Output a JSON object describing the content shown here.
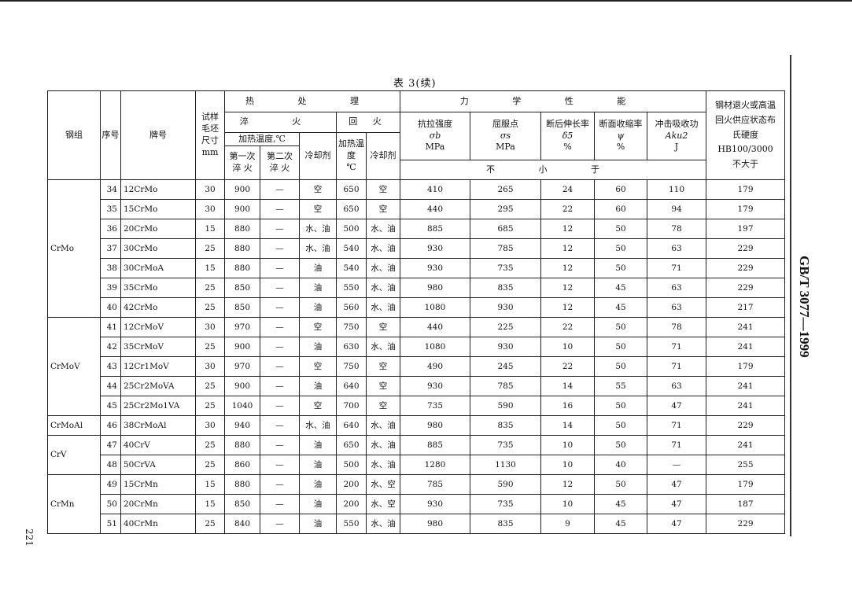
{
  "title": "表 3(续)",
  "side_label": "GB/T 3077—1999",
  "page_number": "221",
  "header": {
    "group": "钢组",
    "index": "序号",
    "grade": "牌号",
    "blank_size": "试样毛坯尺寸",
    "blank_size_unit": "mm",
    "heat_treatment": "热 处 理",
    "quench": "淬 火",
    "temper": "回 火",
    "heat_temp": "加热温度,℃",
    "first_quench": "第一次淬 火",
    "second_quench": "第二次淬 火",
    "coolant": "冷却剂",
    "temper_temp": "加热温度",
    "temper_temp_unit": "℃",
    "temper_coolant": "冷却剂",
    "mechanical": "力 学 性 能",
    "tensile": {
      "name": "抗拉强度",
      "symbol": "σb",
      "unit": "MPa"
    },
    "yield": {
      "name": "屈服点",
      "symbol": "σs",
      "unit": "MPa"
    },
    "elongation": {
      "name": "断后伸长率",
      "symbol": "δ5",
      "unit": "%"
    },
    "reduction": {
      "name": "断面收缩率",
      "symbol": "ψ",
      "unit": "%"
    },
    "impact": {
      "name": "冲击吸收功",
      "symbol": "Aku2",
      "unit": "J"
    },
    "not_less": "不 小 于",
    "hardness": "钢材退火或高温回火供应状态布氏硬度",
    "hardness_unit": "HB100/3000",
    "hardness_note": "不大于"
  },
  "groups": [
    {
      "name": "CrMo",
      "rows": [
        [
          "34",
          "12CrMo",
          "30",
          "900",
          "—",
          "空",
          "650",
          "空",
          "410",
          "265",
          "24",
          "60",
          "110",
          "179"
        ],
        [
          "35",
          "15CrMo",
          "30",
          "900",
          "—",
          "空",
          "650",
          "空",
          "440",
          "295",
          "22",
          "60",
          "94",
          "179"
        ],
        [
          "36",
          "20CrMo",
          "15",
          "880",
          "—",
          "水、油",
          "500",
          "水、油",
          "885",
          "685",
          "12",
          "50",
          "78",
          "197"
        ],
        [
          "37",
          "30CrMo",
          "25",
          "880",
          "—",
          "水、油",
          "540",
          "水、油",
          "930",
          "785",
          "12",
          "50",
          "63",
          "229"
        ],
        [
          "38",
          "30CrMoA",
          "15",
          "880",
          "—",
          "油",
          "540",
          "水、油",
          "930",
          "735",
          "12",
          "50",
          "71",
          "229"
        ],
        [
          "39",
          "35CrMo",
          "25",
          "850",
          "—",
          "油",
          "550",
          "水、油",
          "980",
          "835",
          "12",
          "45",
          "63",
          "229"
        ],
        [
          "40",
          "42CrMo",
          "25",
          "850",
          "—",
          "油",
          "560",
          "水、油",
          "1080",
          "930",
          "12",
          "45",
          "63",
          "217"
        ]
      ]
    },
    {
      "name": "CrMoV",
      "rows": [
        [
          "41",
          "12CrMoV",
          "30",
          "970",
          "—",
          "空",
          "750",
          "空",
          "440",
          "225",
          "22",
          "50",
          "78",
          "241"
        ],
        [
          "42",
          "35CrMoV",
          "25",
          "900",
          "—",
          "油",
          "630",
          "水、油",
          "1080",
          "930",
          "10",
          "50",
          "71",
          "241"
        ],
        [
          "43",
          "12Cr1MoV",
          "30",
          "970",
          "—",
          "空",
          "750",
          "空",
          "490",
          "245",
          "22",
          "50",
          "71",
          "179"
        ],
        [
          "44",
          "25Cr2MoVA",
          "25",
          "900",
          "—",
          "油",
          "640",
          "空",
          "930",
          "785",
          "14",
          "55",
          "63",
          "241"
        ],
        [
          "45",
          "25Cr2Mo1VA",
          "25",
          "1040",
          "—",
          "空",
          "700",
          "空",
          "735",
          "590",
          "16",
          "50",
          "47",
          "241"
        ]
      ]
    },
    {
      "name": "CrMoAl",
      "rows": [
        [
          "46",
          "38CrMoAl",
          "30",
          "940",
          "—",
          "水、油",
          "640",
          "水、油",
          "980",
          "835",
          "14",
          "50",
          "71",
          "229"
        ]
      ]
    },
    {
      "name": "CrV",
      "rows": [
        [
          "47",
          "40CrV",
          "25",
          "880",
          "—",
          "油",
          "650",
          "水、油",
          "885",
          "735",
          "10",
          "50",
          "71",
          "241"
        ],
        [
          "48",
          "50CrVA",
          "25",
          "860",
          "—",
          "油",
          "500",
          "水、油",
          "1280",
          "1130",
          "10",
          "40",
          "—",
          "255"
        ]
      ]
    },
    {
      "name": "CrMn",
      "rows": [
        [
          "49",
          "15CrMn",
          "15",
          "880",
          "—",
          "油",
          "200",
          "水、空",
          "785",
          "590",
          "12",
          "50",
          "47",
          "179"
        ],
        [
          "50",
          "20CrMn",
          "15",
          "850",
          "—",
          "油",
          "200",
          "水、空",
          "930",
          "735",
          "10",
          "45",
          "47",
          "187"
        ],
        [
          "51",
          "40CrMn",
          "25",
          "840",
          "—",
          "油",
          "550",
          "水、油",
          "980",
          "835",
          "9",
          "45",
          "47",
          "229"
        ]
      ]
    }
  ]
}
